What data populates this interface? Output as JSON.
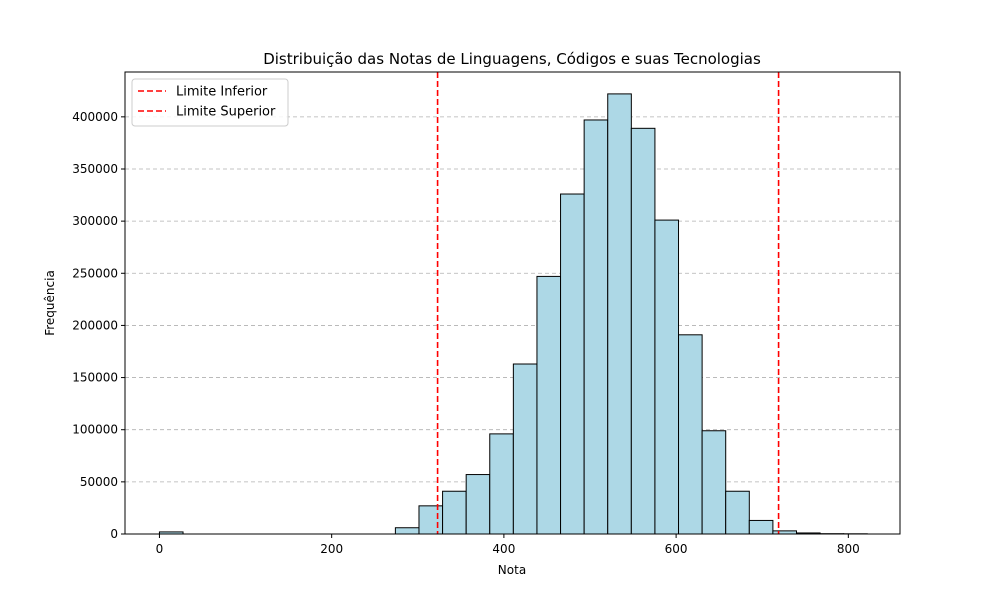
{
  "chart_data": {
    "type": "bar",
    "title": "Distribuição das Notas de Linguagens, Códigos e suas Tecnologias",
    "xlabel": "Nota",
    "ylabel": "Frequência",
    "xlim": [
      -40,
      860
    ],
    "ylim": [
      0,
      443000
    ],
    "x_ticks": [
      0,
      200,
      400,
      600,
      800
    ],
    "y_ticks": [
      0,
      50000,
      100000,
      150000,
      200000,
      250000,
      300000,
      350000,
      400000
    ],
    "grid": "y-dashed",
    "bar_color": "#add8e6",
    "bar_edge_color": "#000000",
    "bins": [
      {
        "x0": 0,
        "x1": 27.4,
        "value": 2000
      },
      {
        "x0": 274,
        "x1": 301.4,
        "value": 6000
      },
      {
        "x0": 301.4,
        "x1": 328.8,
        "value": 27000
      },
      {
        "x0": 328.8,
        "x1": 356.2,
        "value": 41000
      },
      {
        "x0": 356.2,
        "x1": 383.6,
        "value": 57000
      },
      {
        "x0": 383.6,
        "x1": 411.0,
        "value": 96000
      },
      {
        "x0": 411.0,
        "x1": 438.4,
        "value": 163000
      },
      {
        "x0": 438.4,
        "x1": 465.8,
        "value": 247000
      },
      {
        "x0": 465.8,
        "x1": 493.2,
        "value": 326000
      },
      {
        "x0": 493.2,
        "x1": 520.6,
        "value": 397000
      },
      {
        "x0": 520.6,
        "x1": 548.0,
        "value": 422000
      },
      {
        "x0": 548.0,
        "x1": 575.4,
        "value": 389000
      },
      {
        "x0": 575.4,
        "x1": 602.8,
        "value": 301000
      },
      {
        "x0": 602.8,
        "x1": 630.2,
        "value": 191000
      },
      {
        "x0": 630.2,
        "x1": 657.6,
        "value": 99000
      },
      {
        "x0": 657.6,
        "x1": 685.0,
        "value": 41000
      },
      {
        "x0": 685.0,
        "x1": 712.4,
        "value": 13000
      },
      {
        "x0": 712.4,
        "x1": 739.8,
        "value": 3000
      },
      {
        "x0": 739.8,
        "x1": 767.2,
        "value": 1000
      },
      {
        "x0": 767.2,
        "x1": 794.6,
        "value": 300
      },
      {
        "x0": 794.6,
        "x1": 822.0,
        "value": 200
      }
    ],
    "reference_lines": [
      {
        "name": "Limite Inferior",
        "x": 323,
        "color": "#ff0000",
        "style": "dashed"
      },
      {
        "name": "Limite Superior",
        "x": 719,
        "color": "#ff0000",
        "style": "dashed"
      }
    ],
    "legend": {
      "placement": "top-left",
      "entries": [
        "Limite Inferior",
        "Limite Superior"
      ]
    }
  }
}
